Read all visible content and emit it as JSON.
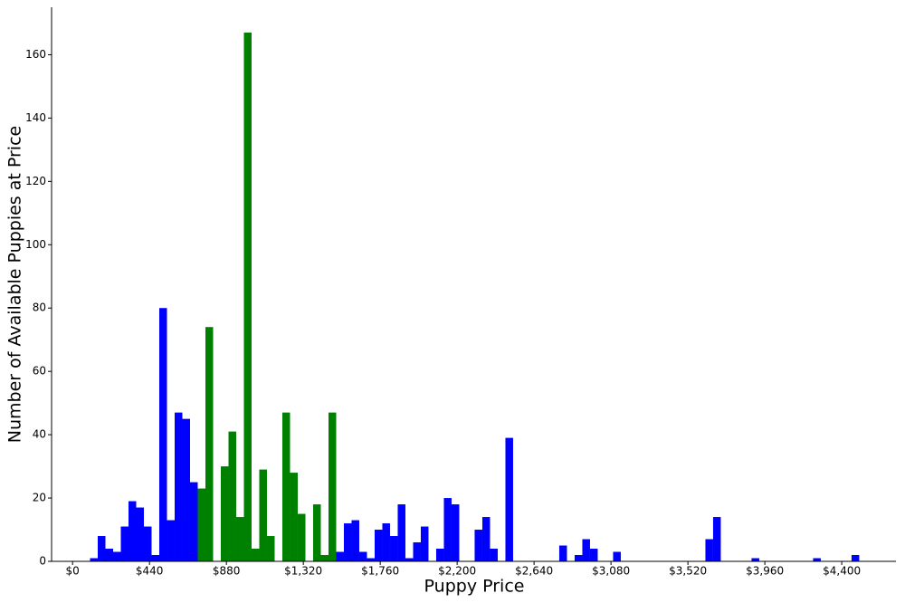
{
  "chart_data": {
    "type": "histogram",
    "x_label": "Puppy Price",
    "y_label": "Number of Available Puppies at Price",
    "bins": [
      100,
      144,
      188,
      232,
      276,
      320,
      364,
      408,
      452,
      496,
      540,
      584,
      628,
      672,
      716,
      760,
      804,
      848,
      892,
      936,
      980,
      1024,
      1068,
      1112,
      1156,
      1200,
      1244,
      1288,
      1332,
      1376,
      1420,
      1464,
      1508,
      1552,
      1596,
      1640,
      1684,
      1728,
      1772,
      1816,
      1860,
      1904,
      1948,
      1992,
      2036,
      2080,
      2124,
      2168,
      2212,
      2256,
      2300,
      2344,
      2388,
      2432,
      2476,
      2520,
      2564,
      2608,
      2652,
      2696,
      2740,
      2784,
      2828,
      2872,
      2916,
      2960,
      3004,
      3048,
      3092,
      3136,
      3180,
      3224,
      3268,
      3312,
      3356,
      3400,
      3444,
      3488,
      3532,
      3576,
      3620,
      3664,
      3708,
      3752,
      3796,
      3840,
      3884,
      3928,
      3972,
      4016,
      4060,
      4104,
      4148,
      4192,
      4236,
      4280,
      4324,
      4368,
      4412,
      4456,
      4500
    ],
    "counts": [
      1,
      8,
      4,
      3,
      11,
      19,
      17,
      11,
      2,
      80,
      13,
      47,
      45,
      25,
      23,
      74,
      0,
      30,
      41,
      14,
      167,
      4,
      29,
      8,
      0,
      47,
      28,
      15,
      0,
      18,
      2,
      47,
      3,
      12,
      13,
      3,
      1,
      10,
      12,
      8,
      18,
      1,
      6,
      11,
      0,
      4,
      20,
      18,
      0,
      0,
      10,
      14,
      4,
      0,
      39,
      0,
      0,
      0,
      0,
      0,
      0,
      5,
      0,
      2,
      7,
      4,
      0,
      0,
      3,
      0,
      0,
      0,
      0,
      0,
      0,
      0,
      0,
      0,
      0,
      0,
      7,
      14,
      0,
      0,
      0,
      0,
      1,
      0,
      0,
      0,
      0,
      0,
      0,
      0,
      1,
      0,
      0,
      0,
      0,
      2
    ],
    "colors": [
      "#0000ff",
      "#0000ff",
      "#0000ff",
      "#0000ff",
      "#0000ff",
      "#0000ff",
      "#0000ff",
      "#0000ff",
      "#0000ff",
      "#0000ff",
      "#0000ff",
      "#0000ff",
      "#0000ff",
      "#0000ff",
      "#008000",
      "#008000",
      "#008000",
      "#008000",
      "#008000",
      "#008000",
      "#008000",
      "#008000",
      "#008000",
      "#008000",
      "#008000",
      "#008000",
      "#008000",
      "#008000",
      "#008000",
      "#008000",
      "#008000",
      "#008000",
      "#0000ff",
      "#0000ff",
      "#0000ff",
      "#0000ff",
      "#0000ff",
      "#0000ff",
      "#0000ff",
      "#0000ff",
      "#0000ff",
      "#0000ff",
      "#0000ff",
      "#0000ff",
      "#0000ff",
      "#0000ff",
      "#0000ff",
      "#0000ff",
      "#0000ff",
      "#0000ff",
      "#0000ff",
      "#0000ff",
      "#0000ff",
      "#0000ff",
      "#0000ff",
      "#0000ff",
      "#0000ff",
      "#0000ff",
      "#0000ff",
      "#0000ff",
      "#0000ff",
      "#0000ff",
      "#0000ff",
      "#0000ff",
      "#0000ff",
      "#0000ff",
      "#0000ff",
      "#0000ff",
      "#0000ff",
      "#0000ff",
      "#0000ff",
      "#0000ff",
      "#0000ff",
      "#0000ff",
      "#0000ff",
      "#0000ff",
      "#0000ff",
      "#0000ff",
      "#0000ff",
      "#0000ff",
      "#0000ff",
      "#0000ff",
      "#0000ff",
      "#0000ff",
      "#0000ff",
      "#0000ff",
      "#0000ff",
      "#0000ff",
      "#0000ff",
      "#0000ff",
      "#0000ff",
      "#0000ff",
      "#0000ff",
      "#0000ff",
      "#0000ff",
      "#0000ff",
      "#0000ff",
      "#0000ff",
      "#0000ff",
      "#0000ff"
    ],
    "xlim": [
      -120,
      4710
    ],
    "xticks": [
      {
        "value": 0,
        "label": "$0"
      },
      {
        "value": 440,
        "label": "$440"
      },
      {
        "value": 880,
        "label": "$880"
      },
      {
        "value": 1320,
        "label": "$1,320"
      },
      {
        "value": 1760,
        "label": "$1,760"
      },
      {
        "value": 2200,
        "label": "$2,200"
      },
      {
        "value": 2640,
        "label": "$2,640"
      },
      {
        "value": 3080,
        "label": "$3,080"
      },
      {
        "value": 3520,
        "label": "$3,520"
      },
      {
        "value": 3960,
        "label": "$3,960"
      },
      {
        "value": 4400,
        "label": "$4,400"
      }
    ],
    "ylim": [
      0,
      175
    ],
    "yticks": [
      0,
      20,
      40,
      60,
      80,
      100,
      120,
      140,
      160
    ]
  }
}
